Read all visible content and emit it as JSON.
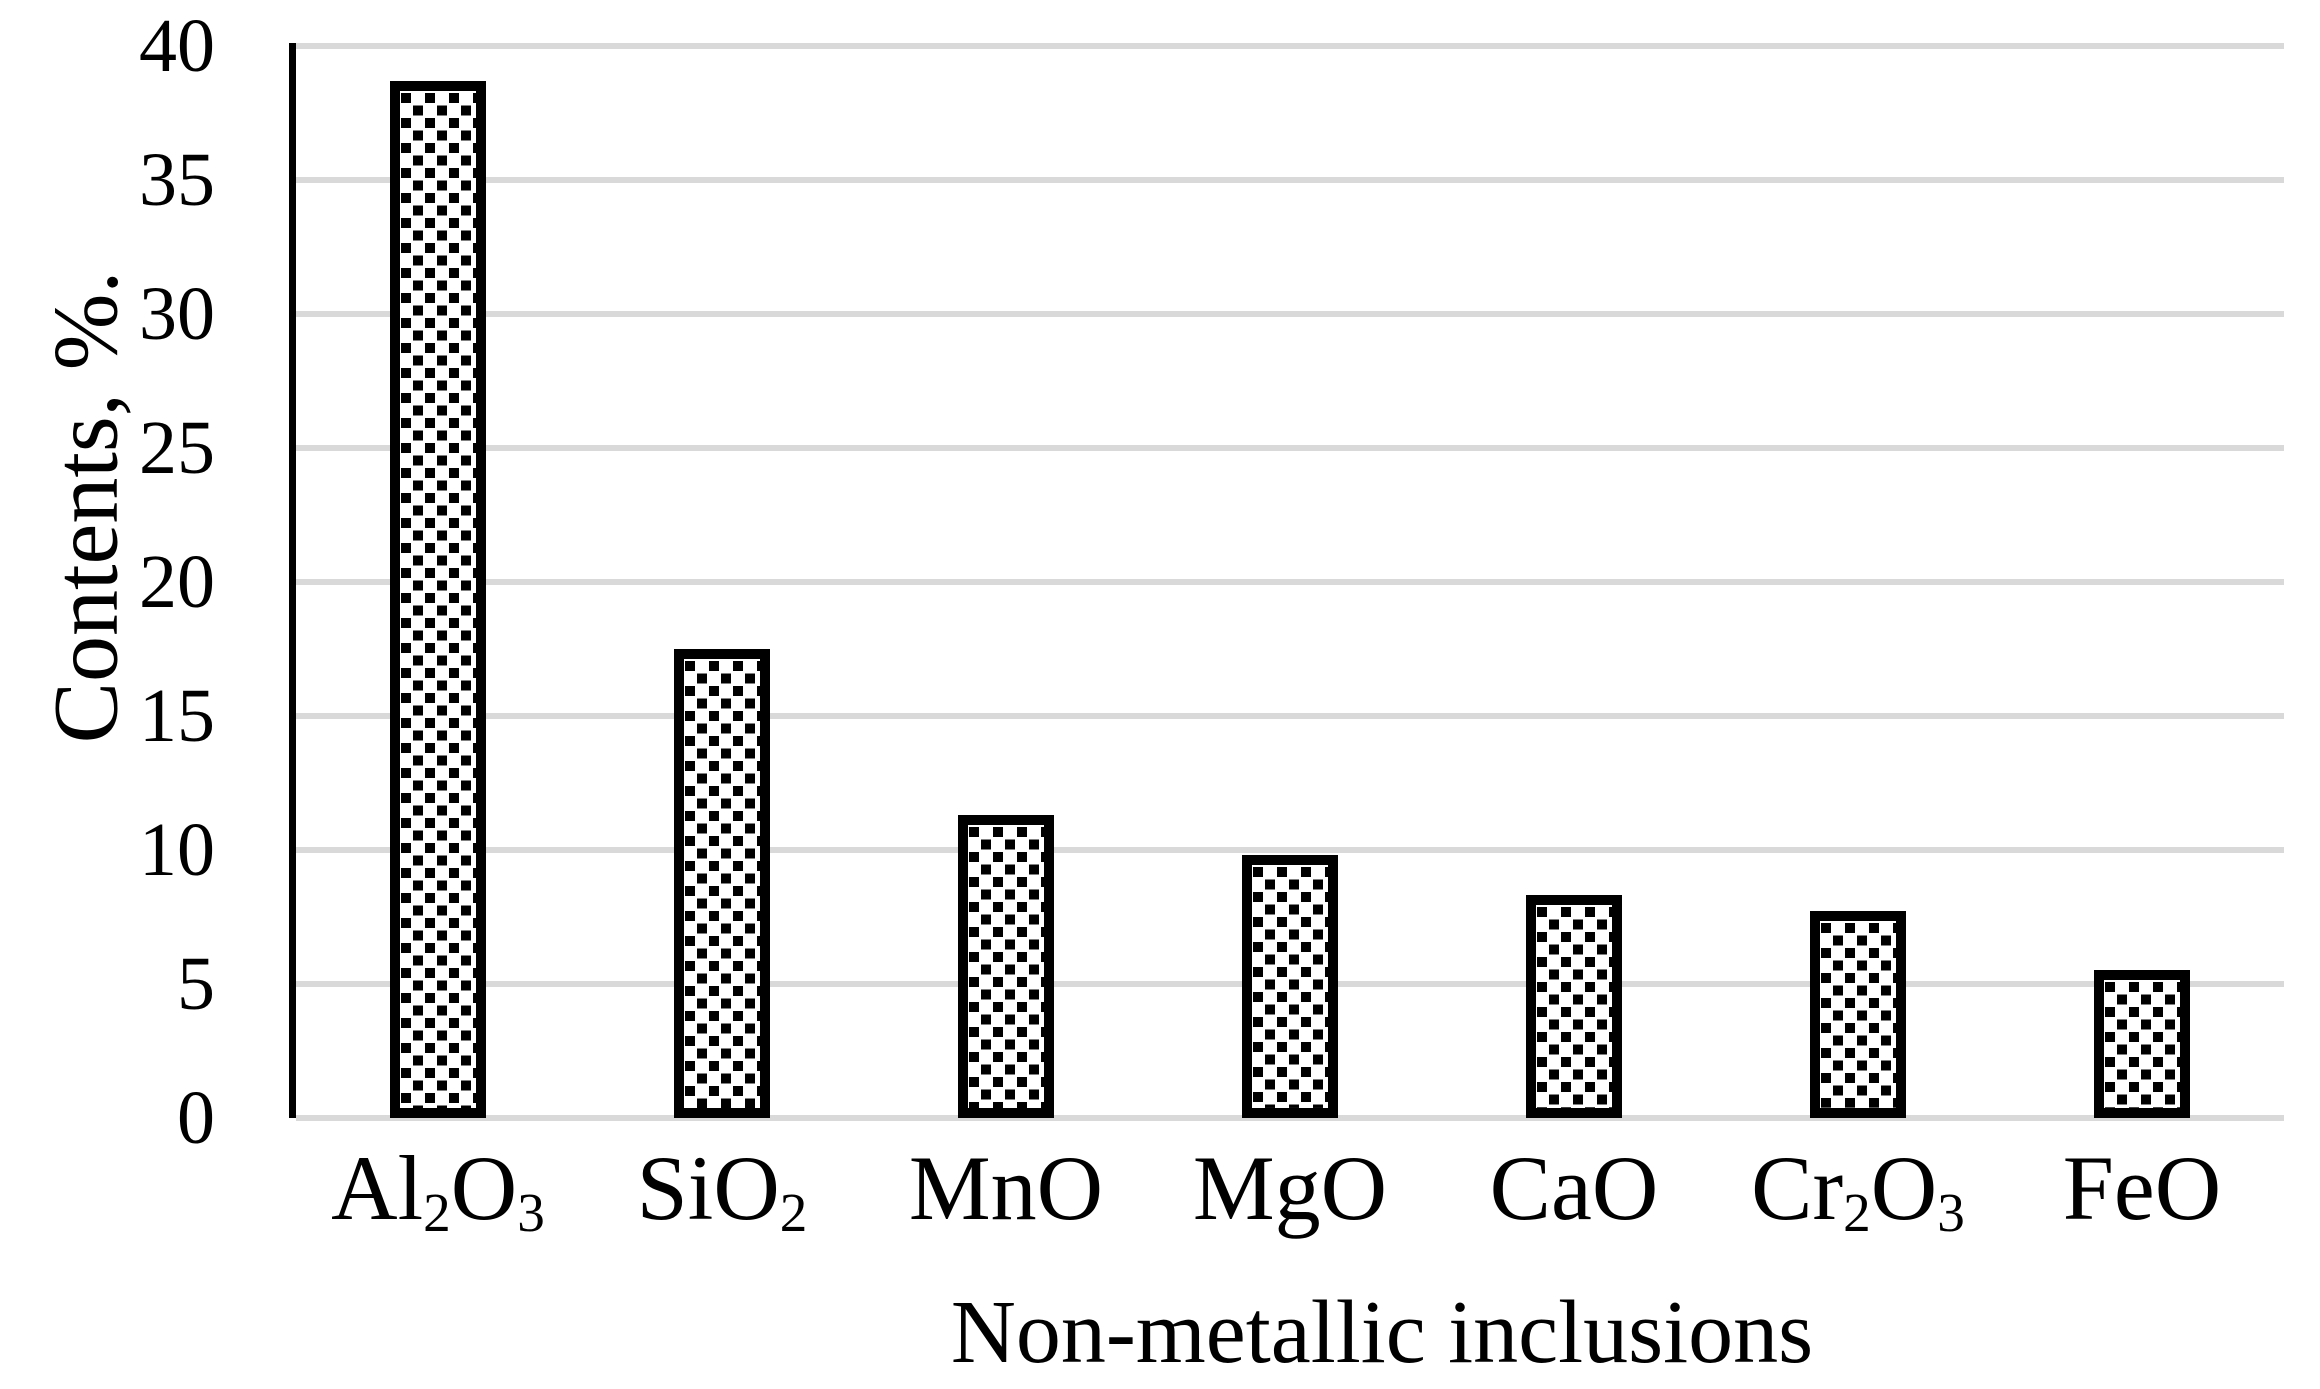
{
  "chart_data": {
    "type": "bar",
    "title": "",
    "xlabel": "Non-metallic inclusions",
    "ylabel": "Contents, %.",
    "categories": [
      {
        "name": "Al2O3",
        "segments": [
          [
            "Al",
            false
          ],
          [
            "2",
            true
          ],
          [
            "O",
            false
          ],
          [
            "3",
            true
          ]
        ]
      },
      {
        "name": "SiO2",
        "segments": [
          [
            "SiO",
            false
          ],
          [
            "2",
            true
          ]
        ]
      },
      {
        "name": "MnO",
        "segments": [
          [
            "MnO",
            false
          ]
        ]
      },
      {
        "name": "MgO",
        "segments": [
          [
            "MgO",
            false
          ]
        ]
      },
      {
        "name": "CaO",
        "segments": [
          [
            "CaO",
            false
          ]
        ]
      },
      {
        "name": "Cr2O3",
        "segments": [
          [
            "Cr",
            false
          ],
          [
            "2",
            true
          ],
          [
            "O",
            false
          ],
          [
            "3",
            true
          ]
        ]
      },
      {
        "name": "FeO",
        "segments": [
          [
            "FeO",
            false
          ]
        ]
      }
    ],
    "values": [
      38.6,
      17.4,
      11.2,
      9.7,
      8.2,
      7.6,
      5.4
    ],
    "ylim": [
      0,
      40
    ],
    "ytick_step": 5,
    "yticks": [
      0,
      5,
      10,
      15,
      20,
      25,
      30,
      35,
      40
    ],
    "grid": "horizontal gridlines on, no vertical gridlines",
    "legend": "none",
    "bar_style": "white fill with black square-dot pattern, thick black border",
    "colors": {
      "background": "#ffffff",
      "gridline": "#d9d9d9",
      "axis_line": "#000000",
      "bar_border": "#000000",
      "pattern_dot": "#000000",
      "text": "#000000"
    }
  }
}
